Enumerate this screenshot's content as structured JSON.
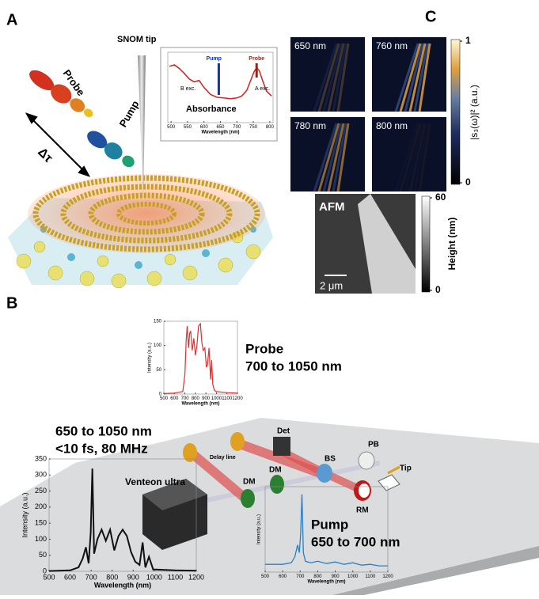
{
  "panel_a": {
    "label": "A",
    "snom_tip": "SNOM tip",
    "probe": "Probe",
    "pump": "Pump",
    "delay": "Δτ",
    "inset": {
      "type": "line",
      "title": "Absorbance",
      "pump": "Pump",
      "probe": "Probe",
      "b_exc": "B exc.",
      "a_exc": "A exc.",
      "xlabel": "Wavelength (nm)",
      "xlim": [
        490,
        810
      ],
      "xticks": [
        500,
        550,
        600,
        650,
        700,
        750,
        800
      ],
      "ylim": [
        0,
        1
      ],
      "color": "#d42020",
      "x": [
        495,
        510,
        525,
        540,
        555,
        570,
        585,
        600,
        620,
        640,
        660,
        680,
        700,
        715,
        730,
        742,
        752,
        760,
        768,
        778,
        790,
        805
      ],
      "values": [
        0.8,
        0.82,
        0.77,
        0.7,
        0.62,
        0.58,
        0.6,
        0.5,
        0.4,
        0.36,
        0.35,
        0.34,
        0.35,
        0.38,
        0.46,
        0.6,
        0.72,
        0.78,
        0.74,
        0.6,
        0.45,
        0.38
      ]
    }
  },
  "panel_c": {
    "label": "C",
    "maps": [
      "650 nm",
      "760 nm",
      "780 nm",
      "800 nm"
    ],
    "colorbar": {
      "label": "|s₃(ω)|² (a.u.)",
      "ylim": [
        0,
        1
      ],
      "yticks": [
        0,
        1
      ]
    },
    "afm": {
      "label": "AFM",
      "scale": "2 μm",
      "colorbar_label": "Height (nm)",
      "ylim": [
        0,
        60
      ],
      "yticks": [
        0,
        60
      ]
    }
  },
  "panel_b": {
    "label": "B",
    "probe_title": "Probe",
    "probe_range": "700 to 1050 nm",
    "source_range": "650 to 1050 nm",
    "source_specs": "<10 fs, 80 MHz",
    "pump_title": "Pump",
    "pump_range": "650 to 700 nm",
    "components": {
      "delay_line": "Delay line",
      "det": "Det",
      "pb": "PB",
      "tip": "Tip",
      "bs": "BS",
      "dm1": "DM",
      "dm2": "DM",
      "rm": "RM",
      "laser": "Venteon ultra"
    },
    "probe_chart": {
      "type": "line",
      "xlabel": "Wavelength (nm)",
      "ylabel": "Intensity (a.u.)",
      "color": "#e03030",
      "xlim": [
        500,
        1200
      ],
      "xticks": [
        500,
        600,
        700,
        800,
        900,
        1000,
        1100,
        1200
      ],
      "ylim": [
        0,
        150
      ],
      "yticks": [
        0,
        50,
        100,
        150
      ],
      "x": [
        500,
        600,
        680,
        700,
        712,
        722,
        735,
        745,
        755,
        770,
        785,
        800,
        815,
        830,
        848,
        862,
        875,
        890,
        905,
        915,
        930,
        945,
        955,
        965,
        980,
        1000,
        1100,
        1200
      ],
      "values": [
        1,
        2,
        5,
        40,
        110,
        140,
        95,
        125,
        130,
        90,
        115,
        80,
        100,
        140,
        145,
        105,
        90,
        95,
        55,
        60,
        95,
        30,
        70,
        20,
        8,
        5,
        3,
        2
      ]
    },
    "source_chart": {
      "type": "line",
      "xlabel": "Wavelength (nm)",
      "ylabel": "Intensity (a.u.)",
      "color": "#111111",
      "xlim": [
        500,
        1200
      ],
      "xticks": [
        500,
        600,
        700,
        800,
        900,
        1000,
        1100,
        1200
      ],
      "ylim": [
        0,
        350
      ],
      "yticks": [
        0,
        50,
        100,
        150,
        200,
        250,
        300,
        350
      ],
      "x": [
        500,
        600,
        640,
        660,
        675,
        688,
        698,
        706,
        714,
        730,
        750,
        770,
        790,
        810,
        830,
        850,
        870,
        890,
        910,
        930,
        945,
        958,
        975,
        995,
        1100,
        1200
      ],
      "values": [
        1,
        3,
        12,
        40,
        75,
        25,
        120,
        320,
        55,
        100,
        130,
        95,
        130,
        65,
        110,
        130,
        110,
        60,
        30,
        20,
        90,
        12,
        45,
        6,
        3,
        2
      ]
    },
    "pump_chart": {
      "type": "line",
      "xlabel": "Wavelength (nm)",
      "ylabel": "Intensity (a.u.)",
      "color": "#2a7fc4",
      "xlim": [
        500,
        1200
      ],
      "xticks": [
        500,
        600,
        700,
        800,
        900,
        1000,
        1100,
        1200
      ],
      "ylim": [
        0,
        1.1
      ],
      "x": [
        500,
        600,
        650,
        670,
        685,
        695,
        703,
        710,
        718,
        730,
        760,
        800,
        850,
        900,
        950,
        1000,
        1050,
        1100,
        1150,
        1200
      ],
      "values": [
        0.1,
        0.1,
        0.12,
        0.2,
        0.35,
        0.25,
        0.5,
        1.0,
        0.25,
        0.14,
        0.12,
        0.14,
        0.11,
        0.13,
        0.1,
        0.12,
        0.09,
        0.1,
        0.08,
        0.08
      ]
    }
  }
}
